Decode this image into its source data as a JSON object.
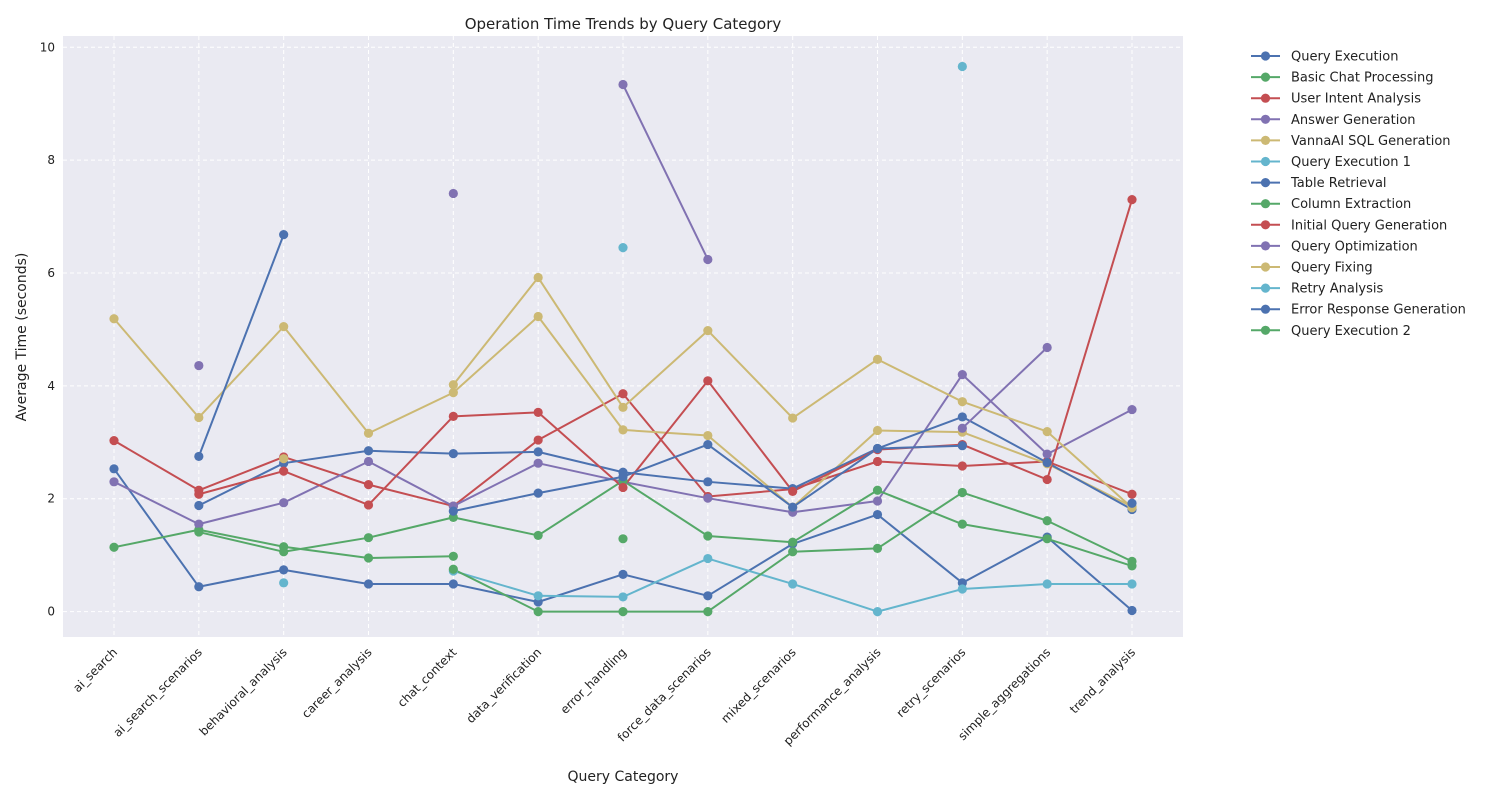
{
  "chart_data": {
    "type": "line",
    "title": "Operation Time Trends by Query Category",
    "xlabel": "Query Category",
    "ylabel": "Average Time (seconds)",
    "ylim": [
      -0.45,
      10.2
    ],
    "yticks": [
      0,
      2,
      4,
      6,
      8,
      10
    ],
    "grid": true,
    "legend_position": "outside-right",
    "categories": [
      "ai_search",
      "ai_search_scenarios",
      "behavioral_analysis",
      "career_analysis",
      "chat_context",
      "data_verification",
      "error_handling",
      "force_data_scenarios",
      "mixed_scenarios",
      "performance_analysis",
      "retry_scenarios",
      "simple_aggregations",
      "trend_analysis"
    ],
    "series": [
      {
        "name": "Query Execution",
        "color": "#4c72b0",
        "values": [
          2.53,
          0.44,
          0.74,
          0.49,
          0.49,
          0.17,
          0.66,
          0.28,
          1.2,
          1.72,
          0.51,
          1.32,
          0.02
        ]
      },
      {
        "name": "Basic Chat Processing",
        "color": "#55a868",
        "values": [
          1.14,
          1.45,
          1.15,
          0.95,
          0.98,
          null,
          1.29,
          null,
          null,
          null,
          null,
          null,
          null
        ]
      },
      {
        "name": "User Intent Analysis",
        "color": "#c44e52",
        "values": [
          3.03,
          2.15,
          2.74,
          2.25,
          1.87,
          3.04,
          3.86,
          2.04,
          2.17,
          2.66,
          2.58,
          2.66,
          2.08
        ]
      },
      {
        "name": "Answer Generation",
        "color": "#8172b2",
        "values": [
          2.3,
          1.55,
          1.93,
          2.66,
          1.87,
          2.63,
          2.3,
          2.01,
          1.76,
          1.96,
          4.2,
          2.79,
          3.58
        ]
      },
      {
        "name": "VannaAI SQL Generation",
        "color": "#ccb974",
        "values": [
          5.19,
          3.44,
          5.05,
          3.16,
          3.88,
          5.23,
          3.22,
          3.12,
          1.85,
          3.21,
          3.18,
          2.62,
          1.86
        ]
      },
      {
        "name": "Query Execution 1",
        "color": "#64b5cd",
        "values": [
          null,
          null,
          0.51,
          null,
          0.72,
          0.28,
          0.26,
          0.94,
          0.49,
          0.0,
          0.4,
          0.49,
          0.49
        ]
      },
      {
        "name": "Table Retrieval",
        "color": "#4c72b0",
        "values": [
          null,
          1.88,
          2.63,
          2.85,
          2.8,
          2.83,
          2.47,
          2.3,
          2.18,
          2.89,
          3.45,
          2.64,
          1.81
        ]
      },
      {
        "name": "Column Extraction",
        "color": "#55a868",
        "values": [
          null,
          1.41,
          1.06,
          1.31,
          1.67,
          1.35,
          2.32,
          1.34,
          1.23,
          2.15,
          1.55,
          1.29,
          0.81
        ]
      },
      {
        "name": "Initial Query Generation",
        "color": "#c44e52",
        "values": [
          null,
          2.08,
          2.49,
          1.89,
          3.46,
          3.53,
          2.2,
          4.09,
          2.13,
          2.87,
          2.96,
          2.34,
          7.3
        ]
      },
      {
        "name": "Query Optimization",
        "color": "#8172b2",
        "values": [
          null,
          4.36,
          null,
          null,
          7.41,
          null,
          9.34,
          6.24,
          null,
          null,
          3.25,
          4.68,
          null
        ]
      },
      {
        "name": "Query Fixing",
        "color": "#ccb974",
        "values": [
          null,
          null,
          2.71,
          null,
          4.02,
          5.92,
          3.62,
          4.98,
          3.43,
          4.47,
          3.72,
          3.19,
          1.84
        ]
      },
      {
        "name": "Retry Analysis",
        "color": "#64b5cd",
        "values": [
          null,
          null,
          null,
          null,
          null,
          null,
          6.45,
          null,
          null,
          null,
          9.66,
          null,
          null
        ]
      },
      {
        "name": "Error Response Generation",
        "color": "#4c72b0",
        "values": [
          null,
          2.75,
          6.68,
          null,
          1.78,
          2.1,
          2.39,
          2.96,
          1.85,
          2.89,
          2.94,
          null,
          1.92
        ]
      },
      {
        "name": "Query Execution 2",
        "color": "#55a868",
        "values": [
          null,
          null,
          null,
          null,
          0.75,
          0.0,
          0.0,
          0.0,
          1.06,
          1.12,
          2.11,
          1.61,
          0.89
        ]
      }
    ]
  }
}
